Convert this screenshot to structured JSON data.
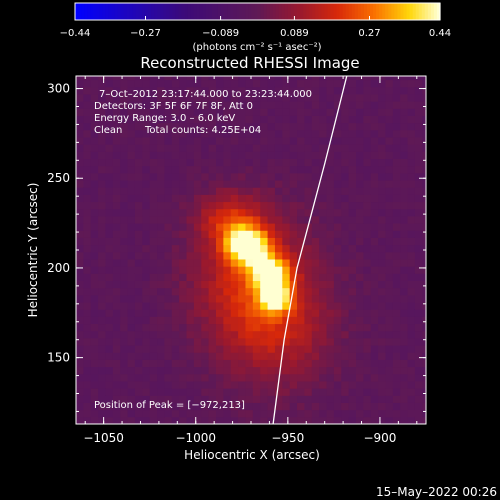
{
  "chart_data": {
    "type": "heatmap",
    "title": "Reconstructed RHESSI Image",
    "xlabel": "Heliocentric X (arcsec)",
    "ylabel": "Heliocentric Y (arcsec)",
    "xlim": [
      -1065,
      -875
    ],
    "ylim": [
      113,
      307
    ],
    "x_ticks": [
      -1050,
      -1000,
      -950,
      -900
    ],
    "x_tick_labels": [
      "−1050",
      "−1000",
      "−950",
      "−900"
    ],
    "y_ticks": [
      150,
      200,
      250,
      300
    ],
    "y_tick_labels": [
      "150",
      "200",
      "250",
      "300"
    ],
    "colorbar": {
      "min": -0.44,
      "max": 0.44,
      "ticks": [
        -0.44,
        -0.27,
        -0.089,
        0.089,
        0.27,
        0.44
      ],
      "tick_labels": [
        "−0.44",
        "−0.27",
        "−0.089",
        "0.089",
        "0.27",
        "0.44"
      ],
      "units": "(photons cm⁻² s⁻¹ asec⁻²)"
    },
    "annotations": [
      "7–Oct–2012 23:17:44.000 to 23:23:44.000",
      "Detectors: 3F 5F 6F 7F 8F, Att 0",
      "Energy Range: 3.0 – 6.0 keV",
      "Clean",
      "Total counts: 4.25E+04"
    ],
    "peak_label": "Position of Peak = [−972,213]",
    "peak": [
      -972,
      213
    ],
    "sources": [
      {
        "x": -972,
        "y": 213,
        "sx": 8,
        "sy": 7,
        "amp": 0.44
      },
      {
        "x": -960,
        "y": 198,
        "sx": 7,
        "sy": 6,
        "amp": 0.36
      },
      {
        "x": -957,
        "y": 184,
        "sx": 6,
        "sy": 6,
        "amp": 0.33
      },
      {
        "x": -970,
        "y": 195,
        "sx": 22,
        "sy": 26,
        "amp": 0.19
      },
      {
        "x": -955,
        "y": 165,
        "sx": 22,
        "sy": 24,
        "amp": 0.13
      },
      {
        "x": -982,
        "y": 228,
        "sx": 12,
        "sy": 10,
        "amp": 0.16
      }
    ],
    "limb": [
      [
        -918,
        307
      ],
      [
        -930,
        258
      ],
      [
        -945,
        200
      ],
      [
        -952,
        160
      ],
      [
        -958,
        113
      ]
    ]
  },
  "timestamp": "15–May–2022 00:26",
  "colors": {
    "background": "#000000",
    "limb": "#ffffff"
  }
}
